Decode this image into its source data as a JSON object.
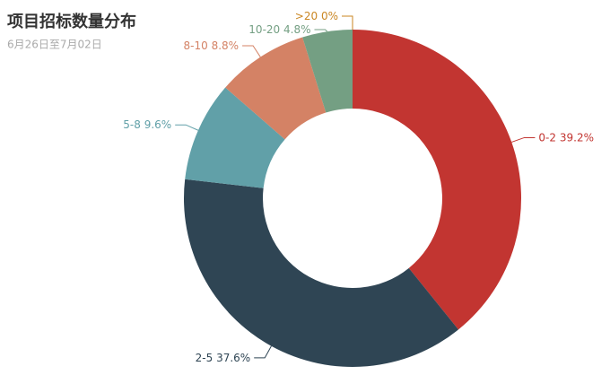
{
  "chart_data": {
    "type": "pie",
    "title": "项目招标数量分布",
    "subtitle": "6月26日至7月02日",
    "categories": [
      "0-2",
      "2-5",
      "5-8",
      "8-10",
      "10-20",
      ">20"
    ],
    "values": [
      39.2,
      37.6,
      9.6,
      8.8,
      4.8,
      0
    ],
    "value_labels": [
      "39.2%",
      "37.6%",
      "9.6%",
      "8.8%",
      "4.8%",
      "0%"
    ],
    "colors": [
      "#c23531",
      "#2f4554",
      "#61a0a8",
      "#d48265",
      "#749f83",
      "#ca8622"
    ]
  }
}
